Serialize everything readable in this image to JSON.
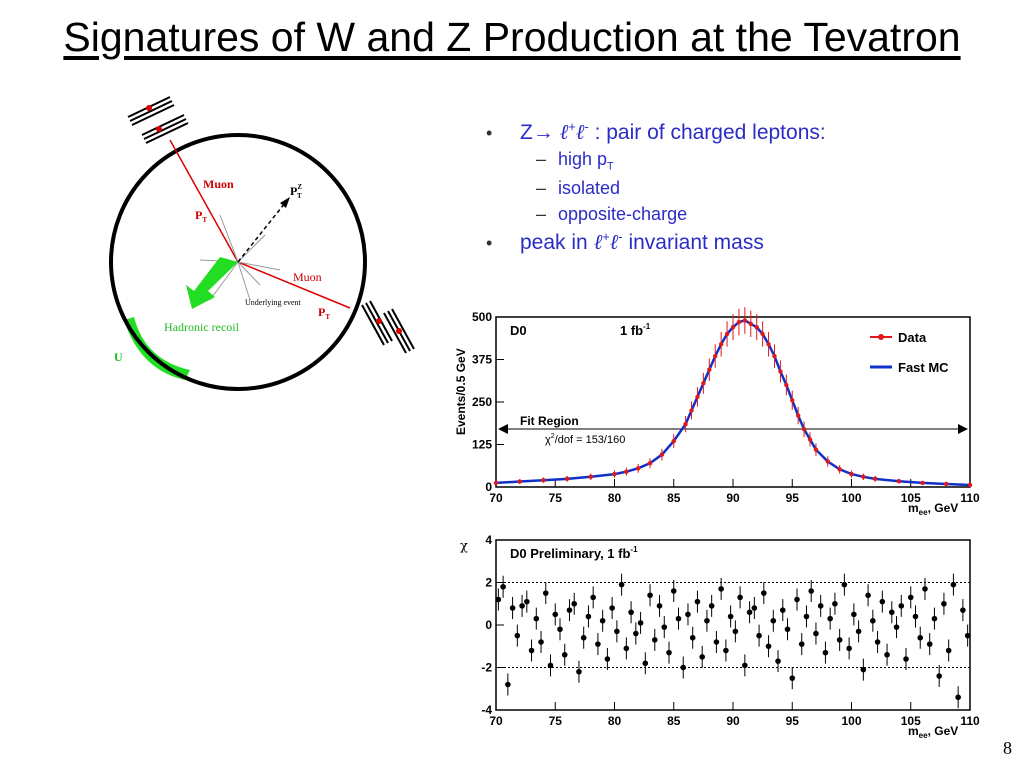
{
  "slide": {
    "title": "Signatures of W and Z Production at the Tevatron",
    "page_number": "8"
  },
  "bullets": {
    "b1_prefix": "Z",
    "b1_arrow": "→",
    "b1_l": "ℓ",
    "b1_sup_plus": "+",
    "b1_sup_minus": "-",
    "b1_text": " : pair of charged leptons:",
    "sub_items": [
      "high p",
      "isolated",
      "opposite-charge"
    ],
    "sub1_subscript": "T",
    "b2_prefix": "peak in ",
    "b2_text": " invariant mass"
  },
  "diagram": {
    "muon1": "Muon",
    "muon2": "Muon",
    "pt1": "P",
    "pt1_sub": "T",
    "pt2": "P",
    "pt2_sub": "T",
    "ptz": "P",
    "ptz_sub": "T",
    "ptz_sup": "Z",
    "underlying": "Underlying event",
    "recoil": "Hadronic recoil",
    "u_label": "U",
    "colors": {
      "muon": "#cc0000",
      "recoil": "#22dd22",
      "detector": "#000000"
    }
  },
  "chart_data": [
    {
      "type": "scatter",
      "title": "",
      "xlabel": "m_ee, GeV",
      "ylabel": "Events/0.5 GeV",
      "xlim": [
        70,
        110
      ],
      "ylim": [
        0,
        500
      ],
      "xticks": [
        "70",
        "75",
        "80",
        "85",
        "90",
        "95",
        "100",
        "105",
        "110"
      ],
      "yticks": [
        "0",
        "125",
        "250",
        "375",
        "500"
      ],
      "annotations": {
        "experiment": "D0",
        "lumi": "1 fb",
        "lumi_sup": "-1",
        "fit_region": "Fit Region",
        "chi2_symbol": "χ",
        "chi2_sup": "2",
        "chi2_text": "/dof = 153/160"
      },
      "legend": [
        {
          "name": "Data",
          "color": "#e01818"
        },
        {
          "name": "Fast MC",
          "color": "#1030c8"
        }
      ],
      "legend_position": "top-right",
      "series": [
        {
          "name": "Data",
          "x": [
            70,
            72,
            74,
            76,
            78,
            80,
            81,
            82,
            83,
            84,
            85,
            86,
            86.5,
            87,
            87.5,
            88,
            88.5,
            89,
            89.5,
            90,
            90.5,
            91,
            91.5,
            92,
            92.5,
            93,
            93.5,
            94,
            94.5,
            95,
            95.5,
            96,
            96.5,
            97,
            98,
            99,
            100,
            101,
            102,
            104,
            106,
            108,
            110
          ],
          "y": [
            12,
            16,
            20,
            24,
            30,
            38,
            45,
            55,
            70,
            95,
            135,
            185,
            225,
            265,
            305,
            345,
            385,
            420,
            450,
            470,
            485,
            490,
            480,
            470,
            450,
            420,
            385,
            340,
            300,
            255,
            210,
            170,
            140,
            110,
            75,
            52,
            38,
            30,
            24,
            17,
            12,
            9,
            6
          ]
        },
        {
          "name": "Fast MC",
          "x": [
            70,
            72,
            74,
            76,
            78,
            80,
            81,
            82,
            83,
            84,
            85,
            86,
            86.5,
            87,
            87.5,
            88,
            88.5,
            89,
            89.5,
            90,
            90.5,
            91,
            91.5,
            92,
            92.5,
            93,
            93.5,
            94,
            94.5,
            95,
            95.5,
            96,
            96.5,
            97,
            98,
            99,
            100,
            101,
            102,
            104,
            106,
            108,
            110
          ],
          "y": [
            12,
            16,
            20,
            24,
            30,
            38,
            45,
            55,
            70,
            95,
            135,
            185,
            225,
            265,
            305,
            345,
            385,
            420,
            450,
            470,
            485,
            490,
            480,
            470,
            450,
            420,
            385,
            340,
            300,
            255,
            210,
            170,
            140,
            110,
            75,
            52,
            38,
            30,
            24,
            17,
            12,
            9,
            6
          ]
        }
      ],
      "fit_range": [
        70,
        110
      ]
    },
    {
      "type": "scatter",
      "title": "D0 Preliminary, 1 fb",
      "title_sup": "-1",
      "xlabel": "m_ee, GeV",
      "ylabel": "χ",
      "xlim": [
        70,
        110
      ],
      "ylim": [
        -4,
        4
      ],
      "xticks": [
        "70",
        "75",
        "80",
        "85",
        "90",
        "95",
        "100",
        "105",
        "110"
      ],
      "yticks": [
        "-4",
        "-2",
        "0",
        "2",
        "4"
      ],
      "reference_lines": [
        -2,
        2
      ],
      "series": [
        {
          "name": "",
          "x": [
            70.2,
            70.6,
            71,
            71.4,
            71.8,
            72.2,
            72.6,
            73,
            73.4,
            73.8,
            74.2,
            74.6,
            75,
            75.4,
            75.8,
            76.2,
            76.6,
            77,
            77.4,
            77.8,
            78.2,
            78.6,
            79,
            79.4,
            79.8,
            80.2,
            80.6,
            81,
            81.4,
            81.8,
            82.2,
            82.6,
            83,
            83.4,
            83.8,
            84.2,
            84.6,
            85,
            85.4,
            85.8,
            86.2,
            86.6,
            87,
            87.4,
            87.8,
            88.2,
            88.6,
            89,
            89.4,
            89.8,
            90.2,
            90.6,
            91,
            91.4,
            91.8,
            92.2,
            92.6,
            93,
            93.4,
            93.8,
            94.2,
            94.6,
            95,
            95.4,
            95.8,
            96.2,
            96.6,
            97,
            97.4,
            97.8,
            98.2,
            98.6,
            99,
            99.4,
            99.8,
            100.2,
            100.6,
            101,
            101.4,
            101.8,
            102.2,
            102.6,
            103,
            103.4,
            103.8,
            104.2,
            104.6,
            105,
            105.4,
            105.8,
            106.2,
            106.6,
            107,
            107.4,
            107.8,
            108.2,
            108.6,
            109,
            109.4,
            109.8
          ],
          "y": [
            1.2,
            1.8,
            -2.8,
            0.8,
            -0.5,
            0.9,
            1.1,
            -1.2,
            0.3,
            -0.8,
            1.5,
            -1.9,
            0.5,
            -0.2,
            -1.4,
            0.7,
            1.0,
            -2.2,
            -0.6,
            0.4,
            1.3,
            -0.9,
            0.2,
            -1.6,
            0.8,
            -0.3,
            1.9,
            -1.1,
            0.6,
            -0.4,
            0.1,
            -1.8,
            1.4,
            -0.7,
            0.9,
            -0.1,
            -1.3,
            1.6,
            0.3,
            -2.0,
            0.5,
            -0.6,
            1.1,
            -1.5,
            0.2,
            0.9,
            -0.8,
            1.7,
            -1.2,
            0.4,
            -0.3,
            1.3,
            -1.9,
            0.6,
            0.8,
            -0.5,
            1.5,
            -1.0,
            0.2,
            -1.7,
            0.7,
            -0.2,
            -2.5,
            1.2,
            -0.9,
            0.4,
            1.6,
            -0.4,
            0.9,
            -1.3,
            0.3,
            1.0,
            -0.7,
            1.9,
            -1.1,
            0.5,
            -0.3,
            -2.1,
            1.4,
            0.2,
            -0.8,
            1.1,
            -1.4,
            0.6,
            -0.1,
            0.9,
            -1.6,
            1.3,
            0.4,
            -0.6,
            1.7,
            -0.9,
            0.3,
            -2.4,
            1.0,
            -1.2,
            1.9,
            -3.4,
            0.7,
            -0.5
          ]
        }
      ]
    }
  ]
}
